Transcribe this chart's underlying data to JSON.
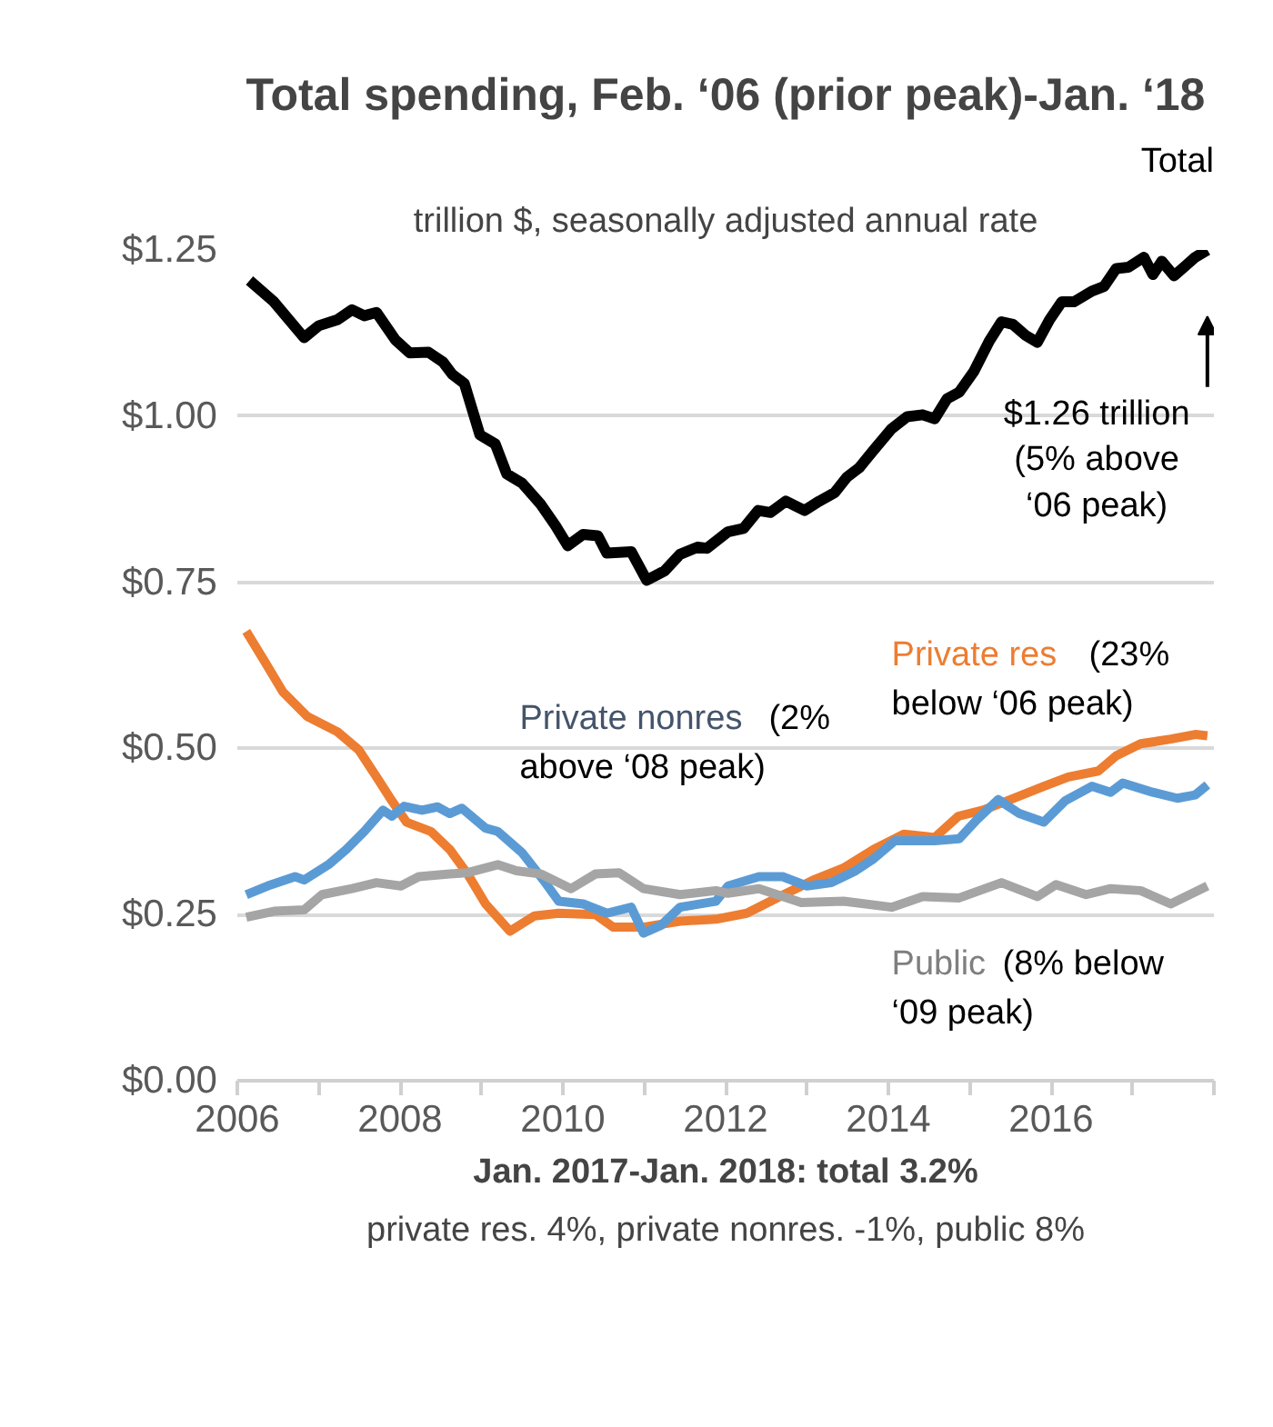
{
  "chart_data": {
    "type": "line",
    "title": "Total spending, Feb. ‘06 (prior peak)-Jan. ‘18",
    "subtitle": "trillion $, seasonally adjusted annual rate",
    "xlim": [
      2006,
      2018
    ],
    "xticks": [
      2006,
      {
        "value": 2007,
        "label": null
      },
      2008,
      {
        "value": 2009,
        "label": null
      },
      2010,
      {
        "value": 2011,
        "label": null
      },
      2012,
      {
        "value": 2013,
        "label": null
      },
      2014,
      {
        "value": 2015,
        "label": null
      },
      2016,
      {
        "value": 2017,
        "label": null
      },
      {
        "value": 2018,
        "label": null
      }
    ],
    "ylim": [
      0,
      1.25
    ],
    "yticks": [
      {
        "value": 0,
        "label": "$0.00"
      },
      {
        "value": 0.25,
        "label": "$0.25"
      },
      {
        "value": 0.5,
        "label": "$0.50"
      },
      {
        "value": 0.75,
        "label": "$0.75"
      },
      {
        "value": 1.0,
        "label": "$1.00"
      },
      {
        "value": 1.25,
        "label": "$1.25"
      }
    ],
    "grid": "y",
    "line_style": "solid",
    "series": [
      {
        "name": "Total",
        "color": "#000000",
        "x": [
          2006.15,
          2006.45,
          2006.82,
          2007.0,
          2007.23,
          2007.41,
          2007.56,
          2007.71,
          2007.94,
          2008.12,
          2008.35,
          2008.53,
          2008.64,
          2008.79,
          2008.98,
          2009.17,
          2009.31,
          2009.5,
          2009.73,
          2009.91,
          2010.06,
          2010.25,
          2010.43,
          2010.54,
          2010.84,
          2011.03,
          2011.25,
          2011.44,
          2011.66,
          2011.77,
          2012.03,
          2012.22,
          2012.4,
          2012.55,
          2012.74,
          2012.97,
          2013.15,
          2013.34,
          2013.49,
          2013.64,
          2013.82,
          2014.04,
          2014.23,
          2014.42,
          2014.57,
          2014.72,
          2014.87,
          2015.05,
          2015.24,
          2015.39,
          2015.53,
          2015.68,
          2015.83,
          2015.98,
          2016.13,
          2016.28,
          2016.5,
          2016.65,
          2016.8,
          2016.95,
          2017.14,
          2017.25,
          2017.36,
          2017.51,
          2017.66,
          2017.77,
          2017.92
        ],
        "values": [
          1.204,
          1.172,
          1.118,
          1.136,
          1.145,
          1.16,
          1.151,
          1.156,
          1.115,
          1.095,
          1.096,
          1.081,
          1.063,
          1.049,
          0.972,
          0.958,
          0.913,
          0.899,
          0.867,
          0.835,
          0.805,
          0.822,
          0.82,
          0.794,
          0.796,
          0.753,
          0.767,
          0.792,
          0.803,
          0.801,
          0.826,
          0.831,
          0.858,
          0.855,
          0.872,
          0.858,
          0.872,
          0.885,
          0.908,
          0.922,
          0.949,
          0.981,
          0.999,
          1.002,
          0.996,
          1.026,
          1.036,
          1.067,
          1.113,
          1.142,
          1.138,
          1.122,
          1.111,
          1.145,
          1.172,
          1.172,
          1.188,
          1.195,
          1.222,
          1.224,
          1.239,
          1.213,
          1.233,
          1.211,
          1.227,
          1.239,
          1.25
        ]
      },
      {
        "name": "Private res",
        "color": "#ed7d31",
        "x": [
          2006.11,
          2006.34,
          2006.56,
          2006.86,
          2007.23,
          2007.49,
          2007.71,
          2007.9,
          2008.08,
          2008.38,
          2008.61,
          2008.83,
          2009.05,
          2009.35,
          2009.65,
          2009.95,
          2010.4,
          2010.62,
          2010.99,
          2011.44,
          2011.88,
          2012.26,
          2012.63,
          2013.08,
          2013.45,
          2013.82,
          2014.19,
          2014.57,
          2014.86,
          2015.16,
          2015.46,
          2015.91,
          2016.21,
          2016.58,
          2016.8,
          2017.1,
          2017.47,
          2017.77,
          2017.92
        ],
        "values": [
          0.676,
          0.63,
          0.585,
          0.548,
          0.525,
          0.498,
          0.457,
          0.421,
          0.389,
          0.375,
          0.348,
          0.311,
          0.266,
          0.225,
          0.248,
          0.252,
          0.25,
          0.231,
          0.231,
          0.24,
          0.243,
          0.252,
          0.275,
          0.302,
          0.32,
          0.348,
          0.371,
          0.366,
          0.398,
          0.407,
          0.421,
          0.443,
          0.457,
          0.466,
          0.489,
          0.507,
          0.514,
          0.521,
          0.519
        ]
      },
      {
        "name": "Private nonres",
        "color": "#5b9bd5",
        "x": [
          2006.11,
          2006.37,
          2006.71,
          2006.82,
          2007.12,
          2007.34,
          2007.56,
          2007.79,
          2007.9,
          2008.05,
          2008.27,
          2008.46,
          2008.61,
          2008.76,
          2009.05,
          2009.2,
          2009.5,
          2009.76,
          2009.95,
          2010.25,
          2010.54,
          2010.84,
          2010.99,
          2011.21,
          2011.44,
          2011.88,
          2012.03,
          2012.41,
          2012.7,
          2013.0,
          2013.3,
          2013.6,
          2013.82,
          2014.08,
          2014.57,
          2014.87,
          2015.09,
          2015.35,
          2015.61,
          2015.91,
          2016.17,
          2016.5,
          2016.73,
          2016.88,
          2017.25,
          2017.55,
          2017.77,
          2017.92
        ],
        "values": [
          0.28,
          0.293,
          0.307,
          0.302,
          0.325,
          0.348,
          0.375,
          0.407,
          0.398,
          0.413,
          0.407,
          0.412,
          0.402,
          0.41,
          0.38,
          0.375,
          0.343,
          0.302,
          0.27,
          0.266,
          0.252,
          0.261,
          0.222,
          0.234,
          0.261,
          0.27,
          0.293,
          0.307,
          0.307,
          0.293,
          0.298,
          0.316,
          0.334,
          0.361,
          0.361,
          0.364,
          0.393,
          0.423,
          0.402,
          0.389,
          0.421,
          0.443,
          0.434,
          0.448,
          0.434,
          0.425,
          0.43,
          0.445
        ]
      },
      {
        "name": "Public",
        "color": "#a5a5a5",
        "x": [
          2006.11,
          2006.45,
          2006.82,
          2007.04,
          2007.41,
          2007.71,
          2008.01,
          2008.23,
          2008.61,
          2008.83,
          2009.2,
          2009.43,
          2009.73,
          2010.1,
          2010.4,
          2010.69,
          2010.99,
          2011.44,
          2011.88,
          2012.03,
          2012.41,
          2012.93,
          2013.45,
          2014.04,
          2014.42,
          2014.87,
          2015.39,
          2015.83,
          2016.06,
          2016.43,
          2016.73,
          2017.1,
          2017.47,
          2017.92
        ],
        "values": [
          0.246,
          0.255,
          0.257,
          0.28,
          0.289,
          0.298,
          0.293,
          0.307,
          0.311,
          0.313,
          0.325,
          0.316,
          0.311,
          0.289,
          0.311,
          0.313,
          0.289,
          0.28,
          0.286,
          0.282,
          0.289,
          0.268,
          0.27,
          0.261,
          0.277,
          0.275,
          0.298,
          0.277,
          0.295,
          0.28,
          0.289,
          0.286,
          0.266,
          0.293
        ]
      }
    ],
    "annotations": [
      "$1.26 trillion\n(5% above\n‘06 peak)",
      "(23%\nbelow ‘06 peak)",
      "(2%\nabove ‘08 peak)",
      "(8% below\n‘09 peak)",
      "Jan. 2017-Jan. 2018: total 3.2%",
      "private res. 4%, private nonres. -1%, public 8%"
    ]
  }
}
